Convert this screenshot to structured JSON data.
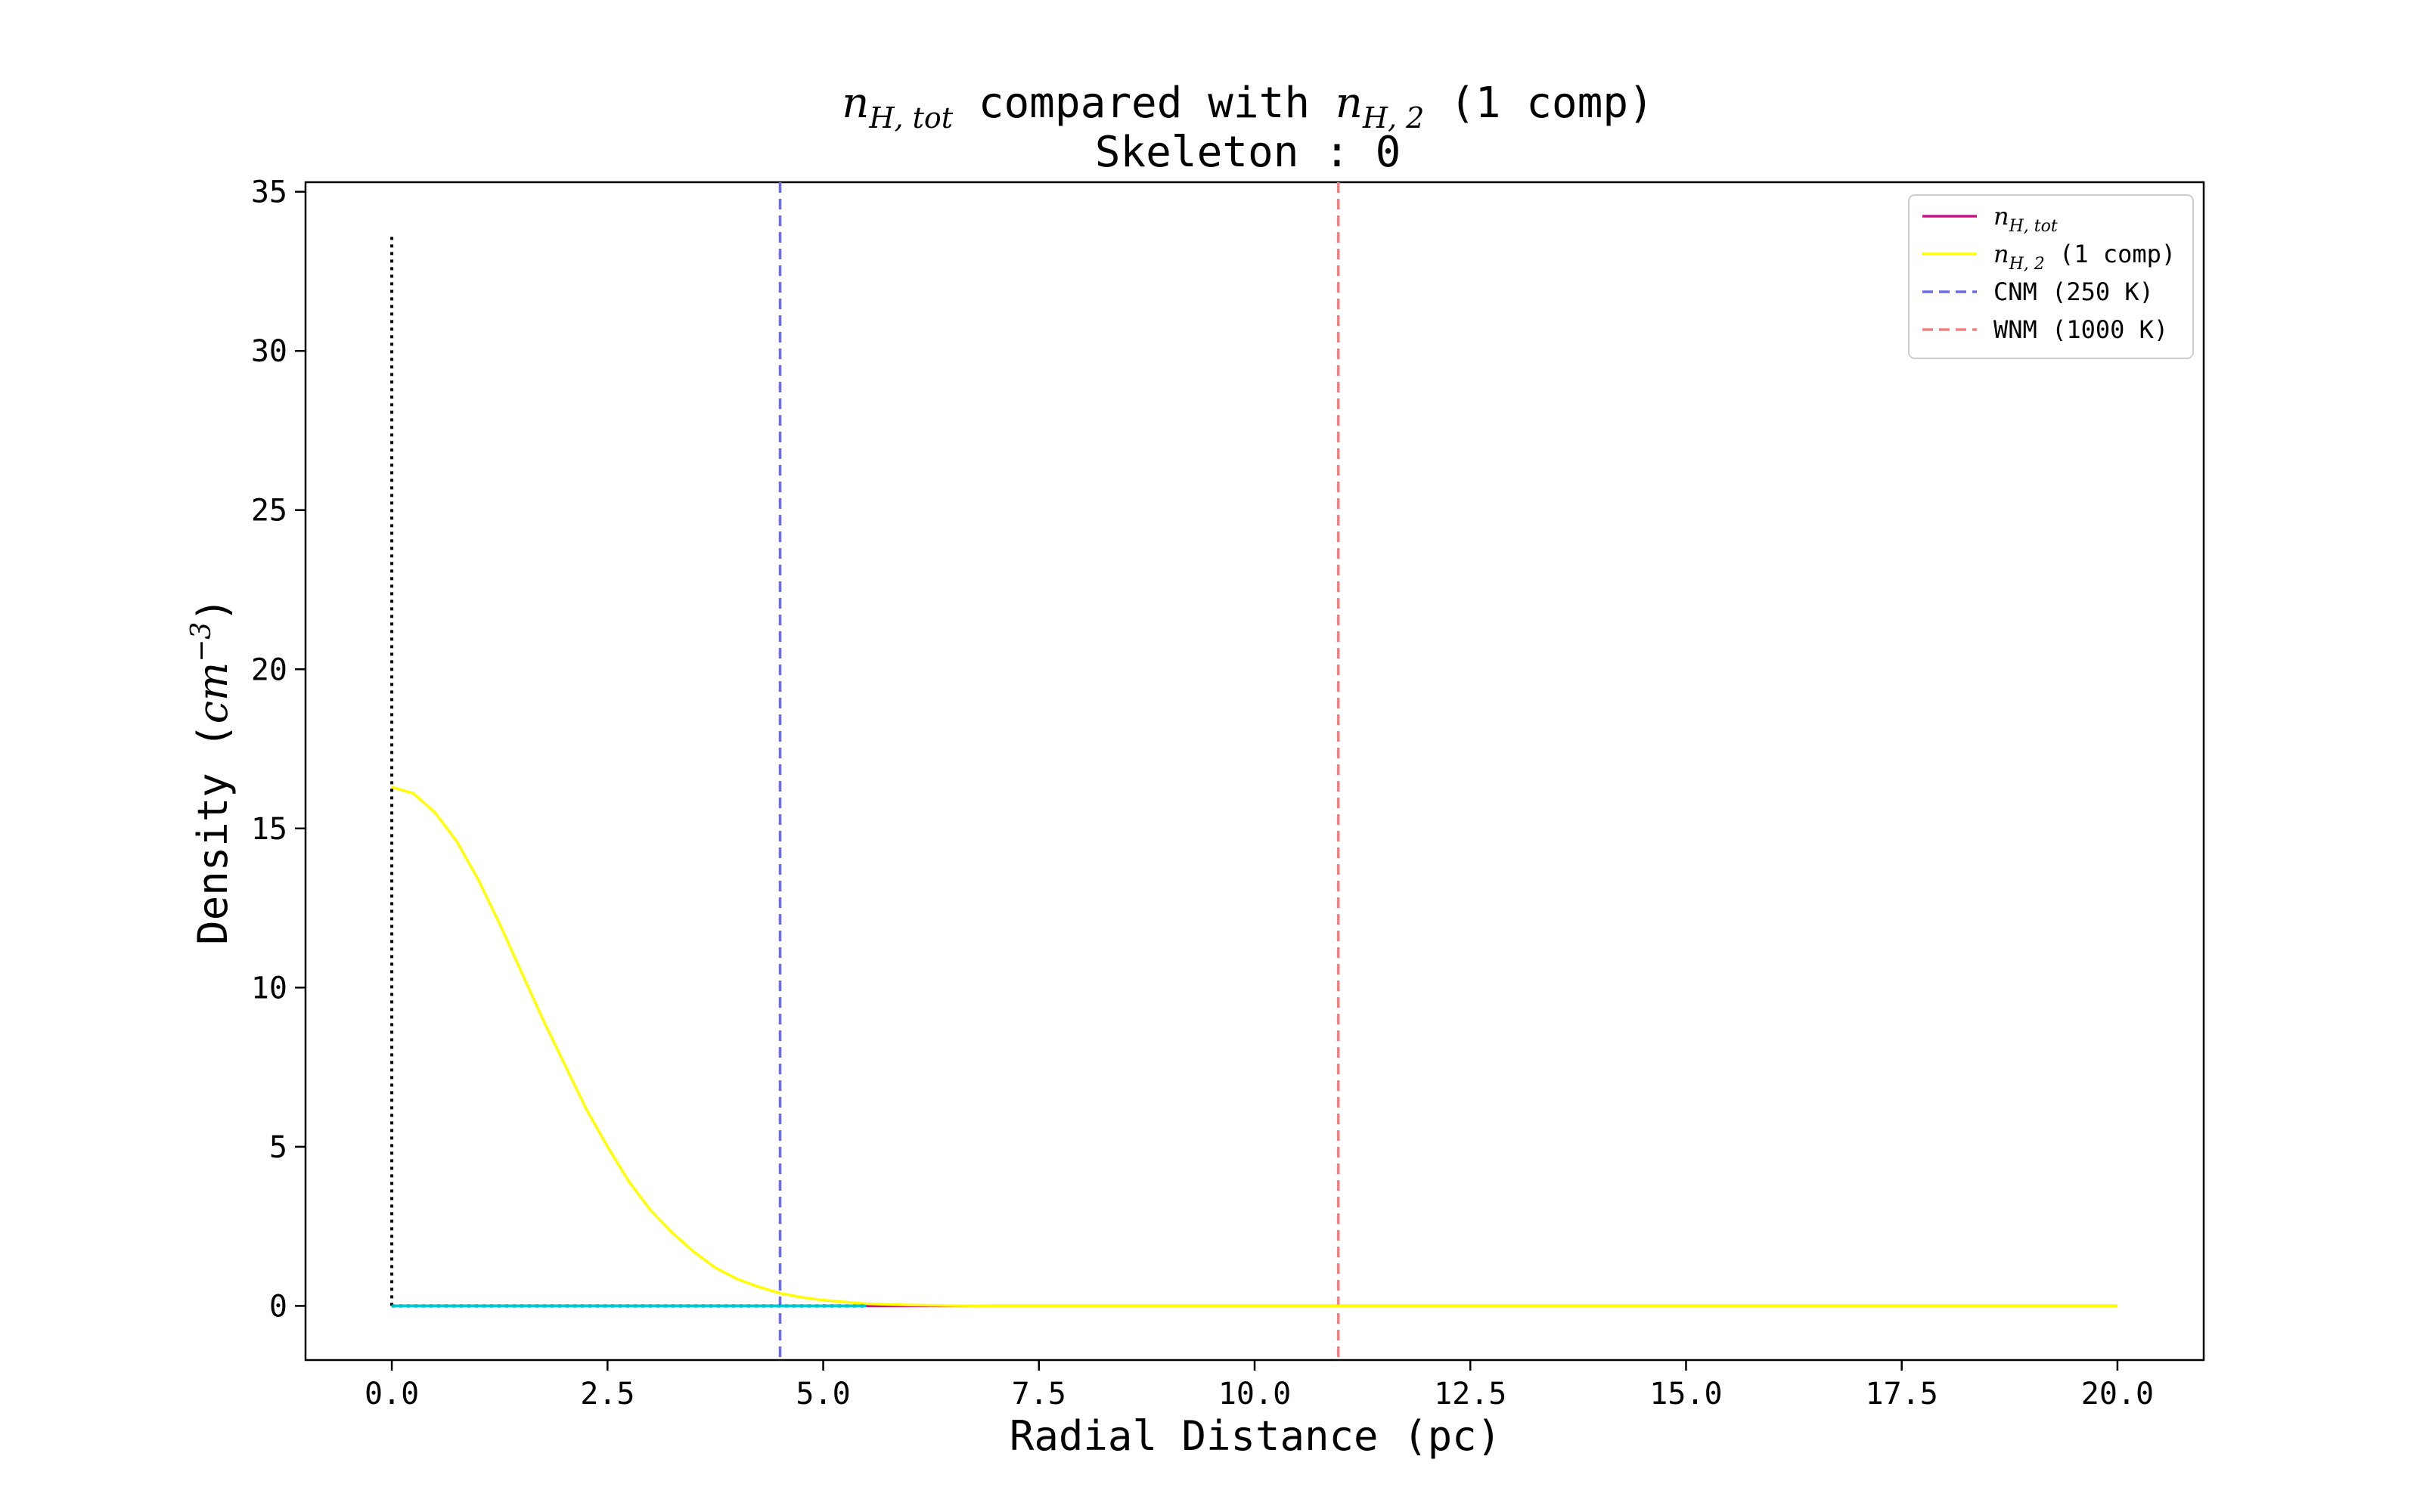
{
  "chart_data": {
    "type": "line",
    "title": {
      "line1": {
        "sym1": "n",
        "sub1": "H, tot",
        "mid": " compared with ",
        "sym2": "n",
        "sub2": "H, 2",
        "tail": " (1 comp)"
      },
      "line2": "Skeleton : 0"
    },
    "xlabel": "Radial Distance (pc)",
    "ylabel": {
      "prefix": "Density (",
      "unit": "cm",
      "exp": "−3",
      "suffix": ")"
    },
    "xlim": [
      -1.0,
      21.0
    ],
    "ylim": [
      -1.7,
      35.3
    ],
    "x_ticks": [
      0.0,
      2.5,
      5.0,
      7.5,
      10.0,
      12.5,
      15.0,
      17.5,
      20.0
    ],
    "x_tick_labels": [
      "0.0",
      "2.5",
      "5.0",
      "7.5",
      "10.0",
      "12.5",
      "15.0",
      "17.5",
      "20.0"
    ],
    "y_ticks": [
      0,
      5,
      10,
      15,
      20,
      25,
      30,
      35
    ],
    "y_tick_labels": [
      "0",
      "5",
      "10",
      "15",
      "20",
      "25",
      "30",
      "35"
    ],
    "grid": false,
    "legend_position": "top-right",
    "series": [
      {
        "key": "nhtot",
        "label": {
          "sym": "n",
          "sub": "H, tot",
          "text": ""
        },
        "color": "#c71585",
        "style": "solid",
        "x": [
          0.0,
          20.0
        ],
        "y": [
          0.0,
          0.0
        ]
      },
      {
        "key": "nh2",
        "label": {
          "sym": "n",
          "sub": "H, 2",
          "text": " (1 comp)"
        },
        "color": "#ffff00",
        "style": "solid",
        "x": [
          0.0,
          0.25,
          0.5,
          0.75,
          1.0,
          1.25,
          1.5,
          1.75,
          2.0,
          2.25,
          2.5,
          2.75,
          3.0,
          3.25,
          3.5,
          3.75,
          4.0,
          4.25,
          4.5,
          4.75,
          5.0,
          5.5,
          6.0,
          6.5,
          7.0,
          8.0,
          10.0,
          12.5,
          15.0,
          17.5,
          20.0
        ],
        "y": [
          16.3,
          16.1,
          15.5,
          14.6,
          13.4,
          12.0,
          10.5,
          9.0,
          7.6,
          6.2,
          5.0,
          3.9,
          3.0,
          2.3,
          1.7,
          1.2,
          0.85,
          0.6,
          0.4,
          0.27,
          0.18,
          0.07,
          0.03,
          0.01,
          0.0,
          0.0,
          0.0,
          0.0,
          0.0,
          0.0,
          0.0
        ]
      },
      {
        "key": "cnm",
        "label": {
          "sym": "",
          "sub": "",
          "text": "CNM (250 K)"
        },
        "color": "#6b6be6",
        "style": "dashed",
        "vline_x": 4.5
      },
      {
        "key": "wnm",
        "label": {
          "sym": "",
          "sub": "",
          "text": "WNM (1000 K)"
        },
        "color": "#f08080",
        "style": "dashed",
        "vline_x": 10.97
      }
    ],
    "extra_lines": [
      {
        "key": "black-dotted-vertical",
        "color": "#000000",
        "style": "dotted",
        "x": [
          0.0,
          0.0
        ],
        "y": [
          0.0,
          33.7
        ]
      },
      {
        "key": "black-dotted-baseline",
        "color": "#000000",
        "style": "dotted",
        "x": [
          0.0,
          5.5
        ],
        "y": [
          0.0,
          0.0
        ]
      },
      {
        "key": "cyan-baseline",
        "color": "#00c8d0",
        "style": "solid",
        "x": [
          0.0,
          5.5
        ],
        "y": [
          0.0,
          0.0
        ]
      }
    ]
  }
}
